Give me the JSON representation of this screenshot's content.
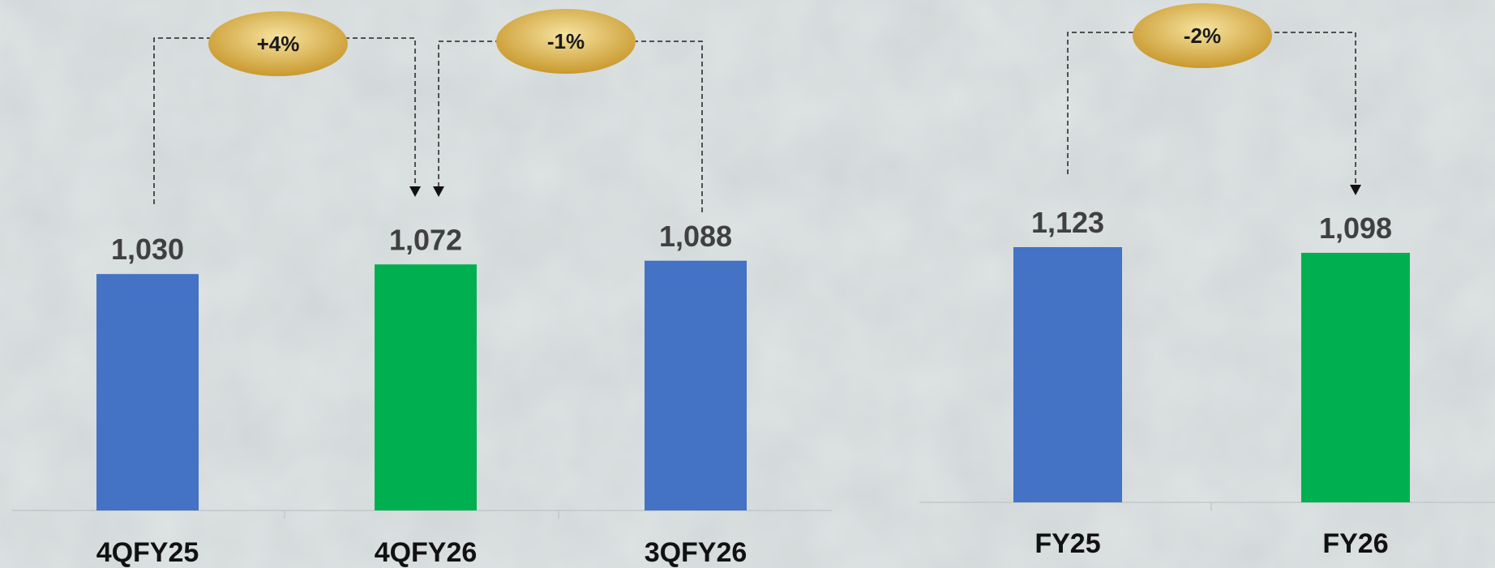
{
  "colors": {
    "blue": "#4472c4",
    "green": "#00b050",
    "badge_light": "#f3d98a",
    "badge_dark": "#c79a2b",
    "background": "#dde2e3"
  },
  "chart_data": [
    {
      "type": "bar",
      "categories": [
        "4QFY25",
        "4QFY26",
        "3QFY26"
      ],
      "values": [
        1030,
        1072,
        1088
      ],
      "data_labels": [
        "1,030",
        "1,072",
        "1,088"
      ],
      "bar_colors": [
        "#4472c4",
        "#00b050",
        "#4472c4"
      ],
      "grid": false,
      "changes": [
        {
          "from": "4QFY25",
          "to": "4QFY26",
          "label": "+4%"
        },
        {
          "from": "3QFY26",
          "to": "4QFY26",
          "label": "-1%"
        }
      ]
    },
    {
      "type": "bar",
      "categories": [
        "FY25",
        "FY26"
      ],
      "values": [
        1123,
        1098
      ],
      "data_labels": [
        "1,123",
        "1,098"
      ],
      "bar_colors": [
        "#4472c4",
        "#00b050"
      ],
      "grid": false,
      "changes": [
        {
          "from": "FY25",
          "to": "FY26",
          "label": "-2%"
        }
      ]
    }
  ]
}
